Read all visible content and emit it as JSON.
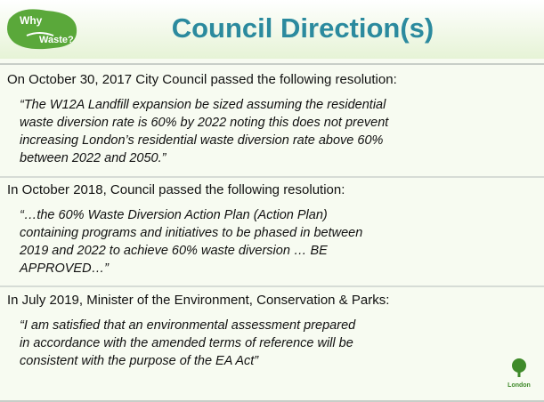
{
  "header": {
    "logo": {
      "line1": "Why",
      "line2": "Waste?"
    },
    "title": "Council Direction(s)"
  },
  "sections": [
    {
      "intro": "On October 30, 2017 City Council passed the following resolution:",
      "quote": [
        "“The W12A Landfill expansion be sized assuming the residential",
        "waste diversion rate is 60% by 2022 noting this does not prevent",
        "increasing London’s residential waste diversion rate above 60%",
        "between 2022 and 2050.”"
      ]
    },
    {
      "intro": "In October 2018, Council passed the following resolution:",
      "quote": [
        "“…the 60% Waste Diversion Action Plan (Action Plan)",
        "containing programs and initiatives to be phased in between",
        "2019 and 2022 to achieve 60% waste diversion … BE",
        "APPROVED…”"
      ]
    },
    {
      "intro": "In July 2019, Minister of the Environment, Conservation & Parks:",
      "quote": [
        "“I am satisfied that an environmental assessment prepared",
        "in accordance with the amended terms of reference will be",
        "consistent with the purpose of the EA Act”"
      ]
    }
  ],
  "footer_logo": "London"
}
